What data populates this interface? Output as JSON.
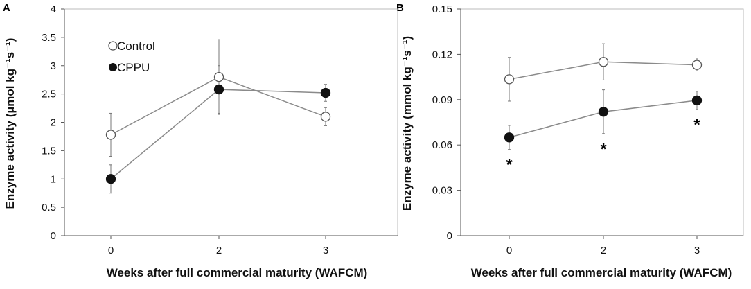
{
  "chart_data": [
    {
      "panel": "A",
      "type": "line",
      "x": [
        "0",
        "2",
        "3"
      ],
      "xlabel": "Weeks after full  commercial maturity (WAFCM)",
      "ylabel": "Enzyme activity (µmol kg⁻¹s⁻¹)",
      "ylim": [
        0,
        4
      ],
      "yticks": [
        "0",
        "0.5",
        "1",
        "1.5",
        "2",
        "2.5",
        "3",
        "3.5",
        "4"
      ],
      "legend": {
        "position": "top-left",
        "entries": [
          "Control",
          "CPPU"
        ]
      },
      "series": [
        {
          "name": "Control",
          "marker": "open-circle",
          "values": [
            1.78,
            2.8,
            2.1
          ],
          "err": [
            0.38,
            0.66,
            0.16
          ],
          "sig": [
            "",
            "",
            ""
          ]
        },
        {
          "name": "CPPU",
          "marker": "filled-circle",
          "values": [
            1.0,
            2.58,
            2.52
          ],
          "err": [
            0.25,
            0.42,
            0.15
          ],
          "sig": [
            "",
            "",
            ""
          ]
        }
      ]
    },
    {
      "panel": "B",
      "type": "line",
      "x": [
        "0",
        "2",
        "3"
      ],
      "xlabel": "Weeks after full  commercial maturity (WAFCM)",
      "ylabel": "Enzyme activity (mmol kg⁻¹s⁻¹)",
      "ylim": [
        0,
        0.15
      ],
      "yticks": [
        "0",
        "0.03",
        "0.06",
        "0.09",
        "0.12",
        "0.15"
      ],
      "series": [
        {
          "name": "Control",
          "marker": "open-circle",
          "values": [
            0.1035,
            0.115,
            0.113
          ],
          "err": [
            0.0145,
            0.012,
            0.004
          ],
          "sig": [
            "",
            "",
            ""
          ]
        },
        {
          "name": "CPPU",
          "marker": "filled-circle",
          "values": [
            0.065,
            0.082,
            0.0895
          ],
          "err": [
            0.008,
            0.0145,
            0.006
          ],
          "sig": [
            "*",
            "*",
            "*"
          ]
        }
      ]
    }
  ]
}
